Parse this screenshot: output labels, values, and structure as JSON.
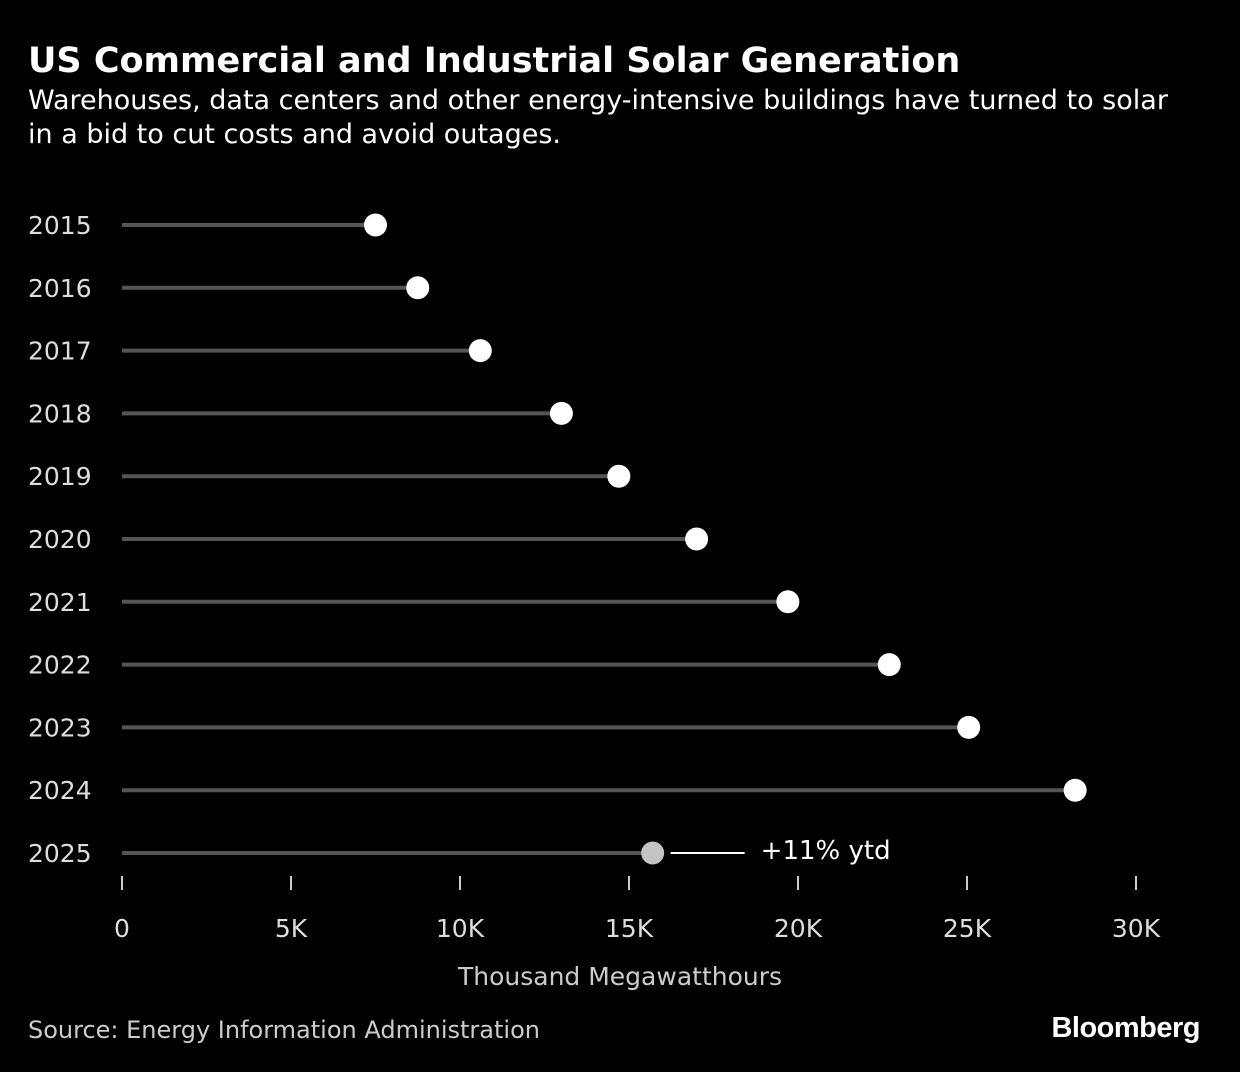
{
  "header": {
    "title": "US Commercial and Industrial Solar Generation",
    "subtitle": "Warehouses, data centers and other energy-intensive buildings have turned to solar in a bid to cut costs and avoid outages."
  },
  "chart_data": {
    "type": "lollipop",
    "title": "US Commercial and Industrial Solar Generation",
    "subtitle": "Warehouses, data centers and other energy-intensive buildings have turned to solar in a bid to cut costs and avoid outages.",
    "orientation": "horizontal",
    "categories": [
      "2015",
      "2016",
      "2017",
      "2018",
      "2019",
      "2020",
      "2021",
      "2022",
      "2023",
      "2024",
      "2025"
    ],
    "values": [
      7500,
      8750,
      10600,
      13000,
      14700,
      17000,
      19700,
      22700,
      25050,
      28200,
      15700
    ],
    "highlight_colors": [
      "#ffffff",
      "#ffffff",
      "#ffffff",
      "#ffffff",
      "#ffffff",
      "#ffffff",
      "#ffffff",
      "#ffffff",
      "#ffffff",
      "#ffffff",
      "#c4c4c4"
    ],
    "xlim": [
      0,
      30000
    ],
    "xticks": [
      0,
      5000,
      10000,
      15000,
      20000,
      25000,
      30000
    ],
    "xtick_labels": [
      "0",
      "5K",
      "10K",
      "15K",
      "20K",
      "25K",
      "30K"
    ],
    "xlabel": "Thousand Megawatthours",
    "ylabel": "",
    "grid": false,
    "annotation": {
      "category": "2025",
      "text": "+11% ytd"
    }
  },
  "footer": {
    "source": "Source: Energy Information Administration",
    "brand": "Bloomberg"
  },
  "colors": {
    "background": "#000000",
    "text": "#ffffff",
    "stem": "#555555",
    "dot": "#ffffff",
    "dot_partial_year": "#c4c4c4",
    "axis_tick": "#cccccc"
  }
}
